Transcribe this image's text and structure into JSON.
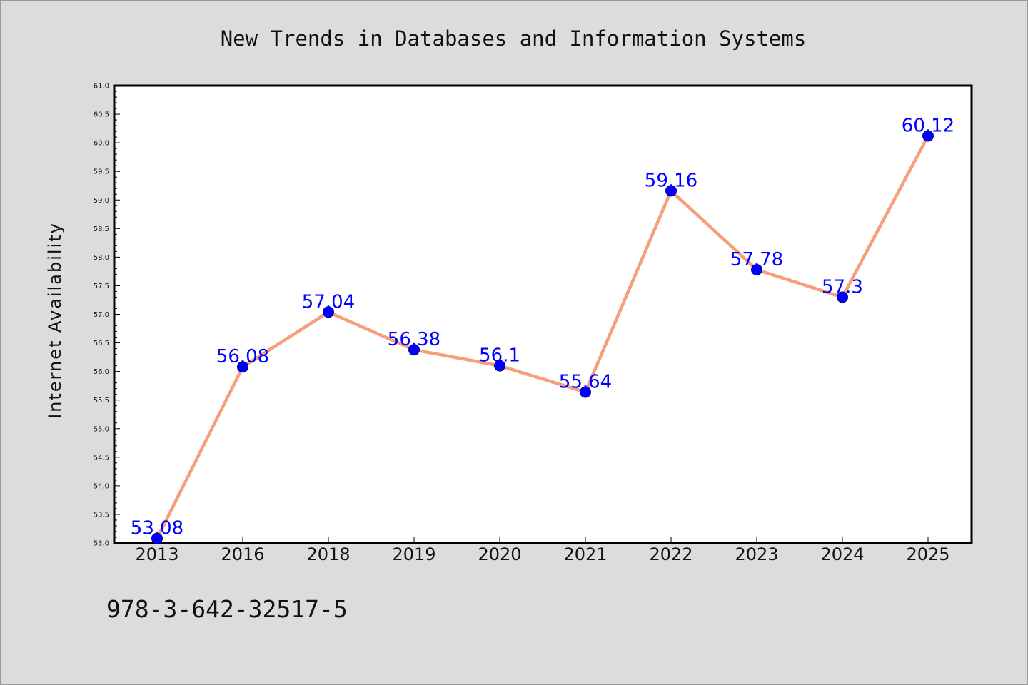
{
  "chart_data": {
    "type": "line",
    "title": "New Trends in Databases and Information Systems",
    "xlabel": "",
    "ylabel": "Internet Availability",
    "categories": [
      "2013",
      "2016",
      "2018",
      "2019",
      "2020",
      "2021",
      "2022",
      "2023",
      "2024",
      "2025"
    ],
    "series": [
      {
        "values": [
          53.08,
          56.08,
          57.04,
          56.38,
          56.1,
          55.64,
          59.16,
          57.78,
          57.3,
          60.12
        ],
        "labels": [
          "53.08",
          "56.08",
          "57.04",
          "56.38",
          "56.1",
          "55.64",
          "59.16",
          "57.78",
          "57.3",
          "60.12"
        ],
        "line_color": "#f5a07a",
        "marker_color": "#0000ff"
      }
    ],
    "ylim": [
      53.0,
      61.0
    ],
    "yticks": [
      "53.0",
      "53.5",
      "54.0",
      "54.5",
      "55.0",
      "55.5",
      "56.0",
      "56.5",
      "57.0",
      "57.5",
      "58.0",
      "58.5",
      "59.0",
      "59.5",
      "60.0",
      "60.5",
      "61.0"
    ],
    "grid": false,
    "legend": "none",
    "background_color": "#dcdcdc",
    "plot_background": "#ffffff"
  },
  "footer": {
    "isbn": "978-3-642-32517-5"
  }
}
